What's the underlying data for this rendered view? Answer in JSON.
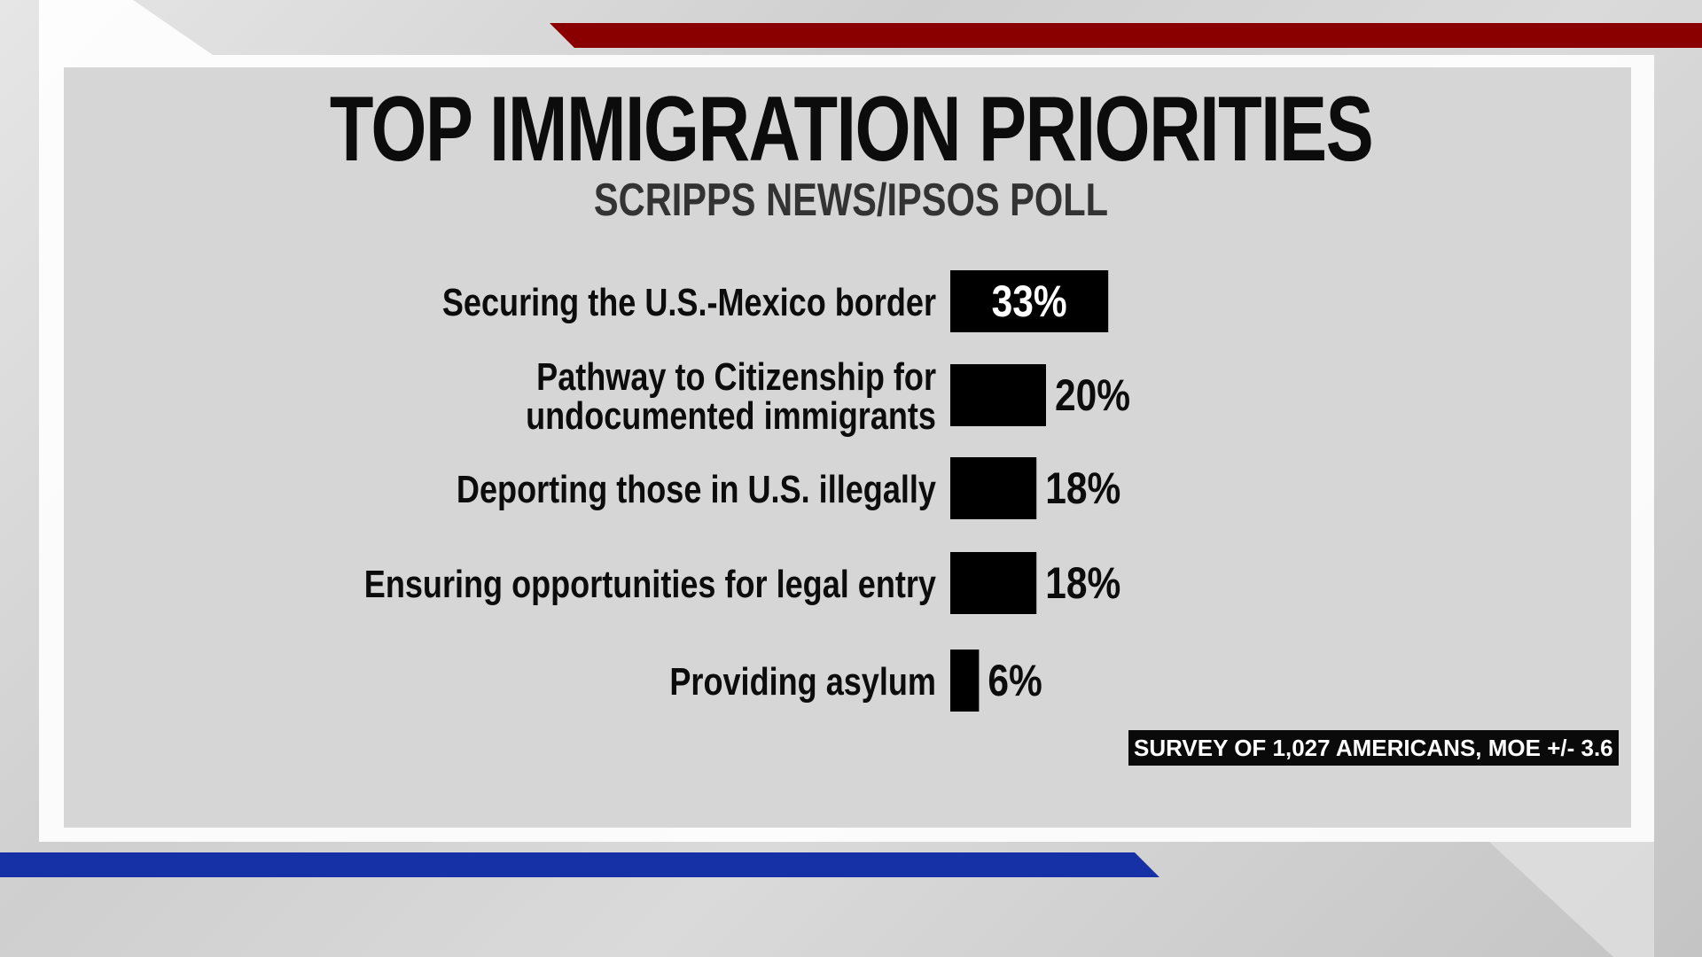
{
  "title": "TOP IMMIGRATION PRIORITIES",
  "subtitle": "SCRIPPS NEWS/IPSOS POLL",
  "note": "SURVEY OF 1,027 AMERICANS, MOE +/- 3.6",
  "colors": {
    "bar": "#000000",
    "accent_red": "#8b0000",
    "accent_blue": "#1a2fa8"
  },
  "chart_data": {
    "type": "bar",
    "orientation": "horizontal",
    "title": "TOP IMMIGRATION PRIORITIES",
    "subtitle": "SCRIPPS NEWS/IPSOS POLL",
    "categories": [
      [
        "Securing the U.S.-Mexico border"
      ],
      [
        "Pathway to Citizenship for",
        "undocumented immigrants"
      ],
      [
        "Deporting those in U.S. illegally"
      ],
      [
        "Ensuring opportunities for legal entry"
      ],
      [
        "Providing asylum"
      ]
    ],
    "values": [
      33,
      20,
      18,
      18,
      6
    ],
    "value_labels": [
      "33%",
      "20%",
      "18%",
      "18%",
      "6%"
    ],
    "unit": "%",
    "grid": false,
    "legend": "none"
  }
}
